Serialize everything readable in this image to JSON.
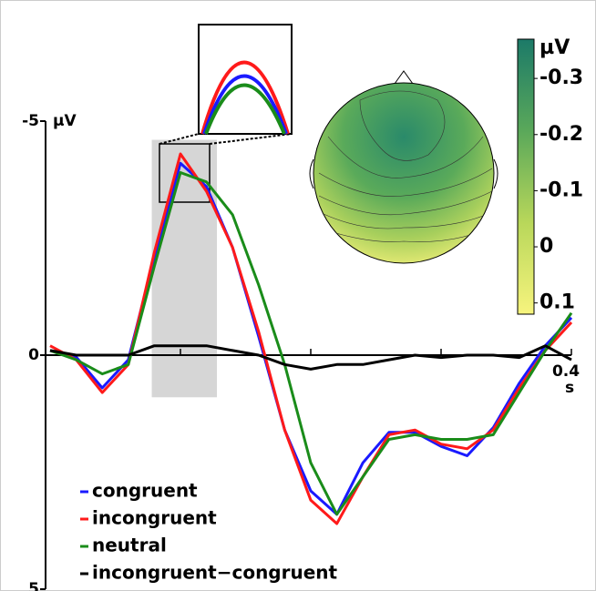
{
  "chart_data": {
    "type": "line",
    "x": [
      0,
      0.02,
      0.04,
      0.06,
      0.08,
      0.1,
      0.12,
      0.14,
      0.16,
      0.18,
      0.2,
      0.22,
      0.24,
      0.26,
      0.28,
      0.3,
      0.32,
      0.34,
      0.36,
      0.38,
      0.4
    ],
    "series": [
      {
        "name": "congruent",
        "color": "#1a1aff",
        "values": [
          -0.1,
          0.04,
          0.7,
          0.1,
          -2.1,
          -4.1,
          -3.6,
          -2.3,
          -0.4,
          1.6,
          2.9,
          3.4,
          2.3,
          1.65,
          1.65,
          1.95,
          2.15,
          1.55,
          0.6,
          -0.2,
          -0.8
        ]
      },
      {
        "name": "incongruent",
        "color": "#ff1a1a",
        "values": [
          -0.2,
          0.1,
          0.8,
          0.2,
          -2.2,
          -4.3,
          -3.5,
          -2.3,
          -0.5,
          1.6,
          3.1,
          3.6,
          2.6,
          1.7,
          1.6,
          1.9,
          2.0,
          1.6,
          0.7,
          -0.1,
          -0.7
        ]
      },
      {
        "name": "neutral",
        "color": "#1a8c1a",
        "values": [
          -0.1,
          0.1,
          0.4,
          0.2,
          -1.9,
          -3.9,
          -3.7,
          -3.0,
          -1.5,
          0.2,
          2.3,
          3.4,
          2.6,
          1.8,
          1.7,
          1.8,
          1.8,
          1.7,
          0.8,
          -0.1,
          -0.9
        ]
      },
      {
        "name": "incongruent−congruent",
        "color": "#000000",
        "values": [
          -0.1,
          0,
          0,
          0,
          -0.2,
          -0.2,
          -0.2,
          -0.1,
          0,
          0.2,
          0.3,
          0.2,
          0.2,
          0.1,
          0,
          0.05,
          0,
          0,
          0.05,
          -0.2,
          0.1
        ]
      }
    ],
    "xlim": [
      0,
      0.4
    ],
    "xticks": [
      0.4
    ],
    "minor_xticks": [
      0.1,
      0.2,
      0.3
    ],
    "xlabel": "s",
    "ylim": [
      -5,
      5
    ],
    "y_inverted": true,
    "yticks": [
      -5,
      0,
      5
    ],
    "ylabel": "µV",
    "highlight_window": {
      "x": [
        0.078,
        0.128
      ],
      "y": [
        -4.6,
        0.9
      ]
    },
    "colorbar": {
      "label": "µV",
      "clim": [
        -0.37,
        0.12
      ],
      "ticks": [
        -0.3,
        -0.2,
        -0.1,
        0,
        0.1
      ],
      "colors": [
        "#1c7a68",
        "#5aa85a",
        "#b8d75a",
        "#f7f47e"
      ]
    }
  }
}
